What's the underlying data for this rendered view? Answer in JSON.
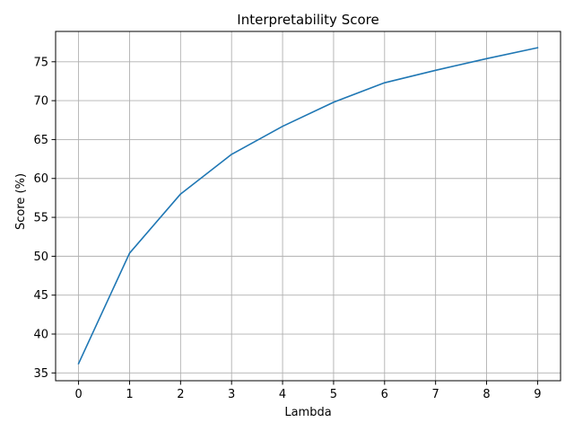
{
  "chart_data": {
    "type": "line",
    "title": "Interpretability Score",
    "xlabel": "Lambda",
    "ylabel": "Score (%)",
    "xlim": [
      -0.45,
      9.45
    ],
    "ylim": [
      34.0,
      78.9
    ],
    "x_ticks": [
      0,
      1,
      2,
      3,
      4,
      5,
      6,
      7,
      8,
      9
    ],
    "y_ticks": [
      35,
      40,
      45,
      50,
      55,
      60,
      65,
      70,
      75
    ],
    "grid": true,
    "series": [
      {
        "x": [
          0,
          1,
          2,
          3,
          4,
          5,
          6,
          7,
          8,
          9
        ],
        "values": [
          36.2,
          50.4,
          58.0,
          63.1,
          66.7,
          69.8,
          72.3,
          73.9,
          75.4,
          76.8
        ],
        "color": "#1f77b4"
      }
    ]
  }
}
